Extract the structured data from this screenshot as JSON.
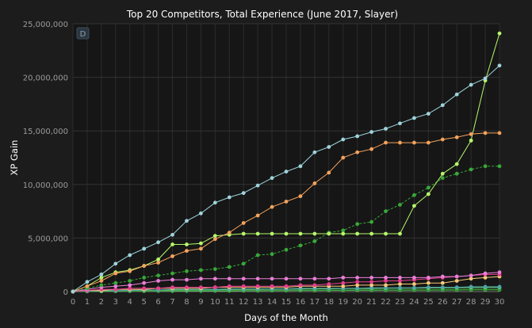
{
  "chart_data": {
    "type": "line",
    "title": "Top 20 Competitors, Total Experience (June 2017, Slayer)",
    "xlabel": "Days of the Month",
    "ylabel": "XP Gain",
    "xlim": [
      0,
      30
    ],
    "ylim": [
      0,
      25000000
    ],
    "xticks": [
      0,
      1,
      2,
      3,
      4,
      5,
      6,
      7,
      8,
      9,
      10,
      11,
      12,
      13,
      14,
      15,
      16,
      17,
      18,
      19,
      20,
      21,
      22,
      23,
      24,
      25,
      26,
      27,
      28,
      29,
      30
    ],
    "xtick_labels": [
      "0",
      "1",
      "2",
      "3",
      "4",
      "5",
      "6",
      "7",
      "8",
      "9",
      "10",
      "11",
      "12",
      "13",
      "14",
      "15",
      "16",
      "17",
      "18",
      "19",
      "20",
      "21",
      "22",
      "23",
      "24",
      "25",
      "26",
      "27",
      "28",
      "29",
      "30"
    ],
    "yticks": [
      0,
      5000000,
      10000000,
      15000000,
      20000000,
      25000000
    ],
    "ytick_labels": [
      "0",
      "5,000,000",
      "10,000,000",
      "15,000,000",
      "20,000,000",
      "25,000,000"
    ],
    "grid": true,
    "legend": "none",
    "badge": "D",
    "series": [
      {
        "color": "#9fd4dc",
        "dashed": false,
        "values": [
          0,
          900000,
          1600000,
          2600000,
          3400000,
          4000000,
          4600000,
          5300000,
          6600000,
          7300000,
          8300000,
          8800000,
          9200000,
          9900000,
          10600000,
          11200000,
          11700000,
          13000000,
          13500000,
          14200000,
          14500000,
          14900000,
          15200000,
          15700000,
          16200000,
          16600000,
          17400000,
          18400000,
          19300000,
          19900000,
          21100000
        ]
      },
      {
        "color": "#f4a35d",
        "dashed": false,
        "values": [
          0,
          500000,
          1000000,
          1700000,
          1900000,
          2400000,
          2700000,
          3300000,
          3800000,
          4000000,
          4900000,
          5500000,
          6400000,
          7100000,
          7900000,
          8400000,
          8900000,
          10100000,
          11100000,
          12500000,
          13000000,
          13300000,
          13900000,
          13900000,
          13900000,
          13900000,
          14200000,
          14400000,
          14700000,
          14800000,
          14800000
        ]
      },
      {
        "color": "#b7f86b",
        "dashed": false,
        "values": [
          0,
          500000,
          1300000,
          1800000,
          2000000,
          2400000,
          3000000,
          4400000,
          4400000,
          4500000,
          5200000,
          5300000,
          5400000,
          5400000,
          5400000,
          5400000,
          5400000,
          5400000,
          5400000,
          5400000,
          5400000,
          5400000,
          5400000,
          5400000,
          8000000,
          9100000,
          11000000,
          11900000,
          14100000,
          19700000,
          24100000
        ]
      },
      {
        "color": "#3aa83a",
        "dashed": true,
        "values": [
          0,
          300000,
          600000,
          800000,
          1000000,
          1300000,
          1500000,
          1700000,
          1900000,
          2000000,
          2100000,
          2300000,
          2600000,
          3400000,
          3500000,
          3900000,
          4300000,
          4700000,
          5500000,
          5700000,
          6300000,
          6500000,
          7500000,
          8100000,
          9000000,
          9700000,
          10600000,
          11000000,
          11400000,
          11700000,
          11700000
        ]
      },
      {
        "color": "#ea7fd8",
        "dashed": false,
        "values": [
          0,
          200000,
          400000,
          500000,
          600000,
          800000,
          1000000,
          1100000,
          1100000,
          1200000,
          1200000,
          1200000,
          1200000,
          1200000,
          1200000,
          1200000,
          1200000,
          1200000,
          1200000,
          1300000,
          1300000,
          1300000,
          1300000,
          1300000,
          1300000,
          1300000,
          1400000,
          1400000,
          1500000,
          1700000,
          1800000
        ]
      },
      {
        "color": "#e53e8e",
        "dashed": false,
        "values": [
          0,
          100000,
          200000,
          200000,
          300000,
          300000,
          300000,
          400000,
          400000,
          400000,
          400000,
          500000,
          500000,
          500000,
          500000,
          500000,
          600000,
          600000,
          700000,
          800000,
          900000,
          900000,
          1000000,
          1000000,
          1100000,
          1200000,
          1300000,
          1400000,
          1500000,
          1600000,
          1600000
        ]
      },
      {
        "color": "#f6c97a",
        "dashed": false,
        "values": [
          0,
          100000,
          100000,
          200000,
          200000,
          200000,
          300000,
          300000,
          300000,
          300000,
          400000,
          400000,
          400000,
          400000,
          400000,
          400000,
          500000,
          500000,
          500000,
          500000,
          600000,
          600000,
          600000,
          700000,
          700000,
          800000,
          800000,
          1000000,
          1200000,
          1300000,
          1400000
        ]
      },
      {
        "color": "#4ea3a8",
        "dashed": false,
        "values": [
          0,
          50000,
          100000,
          100000,
          100000,
          150000,
          150000,
          200000,
          200000,
          200000,
          200000,
          250000,
          250000,
          250000,
          250000,
          250000,
          300000,
          300000,
          300000,
          300000,
          300000,
          350000,
          350000,
          350000,
          350000,
          400000,
          400000,
          400000,
          450000,
          450000,
          450000
        ]
      },
      {
        "color": "#6fd07f",
        "dashed": false,
        "values": [
          0,
          40000,
          60000,
          80000,
          100000,
          120000,
          140000,
          150000,
          160000,
          170000,
          180000,
          190000,
          200000,
          210000,
          220000,
          230000,
          240000,
          250000,
          260000,
          270000,
          280000,
          290000,
          300000,
          310000,
          320000,
          330000,
          340000,
          350000,
          360000,
          370000,
          380000
        ]
      },
      {
        "color": "#2a8f2a",
        "dashed": false,
        "values": [
          0,
          20000,
          40000,
          50000,
          60000,
          70000,
          80000,
          90000,
          100000,
          100000,
          110000,
          110000,
          120000,
          120000,
          130000,
          130000,
          140000,
          140000,
          150000,
          150000,
          160000,
          160000,
          170000,
          170000,
          180000,
          180000,
          190000,
          190000,
          200000,
          200000,
          210000
        ]
      },
      {
        "color": "#5cd65c",
        "dashed": false,
        "values": [
          0,
          10000,
          20000,
          30000,
          40000,
          40000,
          50000,
          50000,
          60000,
          60000,
          70000,
          70000,
          80000,
          80000,
          90000,
          90000,
          100000,
          100000,
          110000,
          110000,
          120000,
          120000,
          130000,
          130000,
          140000,
          140000,
          150000,
          150000,
          160000,
          160000,
          170000
        ]
      }
    ]
  }
}
